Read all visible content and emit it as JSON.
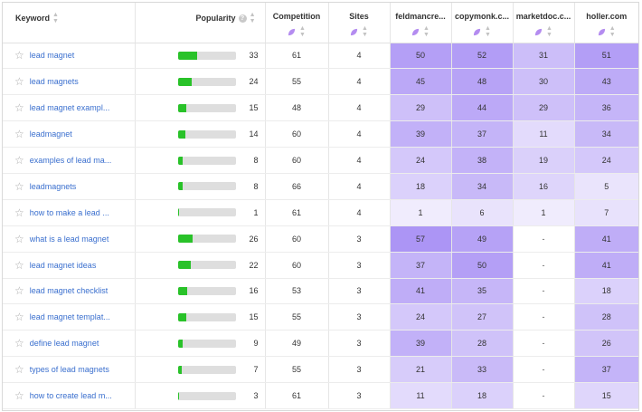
{
  "columns": {
    "keyword": "Keyword",
    "popularity": "Popularity",
    "competition": "Competition",
    "sites": "Sites",
    "site1": "feldmancre...",
    "site2": "copymonk.c...",
    "site3": "marketdoc.c...",
    "site4": "holler.com"
  },
  "popularity_max": 100,
  "heat_color": "#a58cf4",
  "rows": [
    {
      "keyword": "lead magnet",
      "popularity": 33,
      "competition": 61,
      "sites": 4,
      "s1": "50",
      "s2": "52",
      "s3": "31",
      "s4": "51"
    },
    {
      "keyword": "lead magnets",
      "popularity": 24,
      "competition": 55,
      "sites": 4,
      "s1": "45",
      "s2": "48",
      "s3": "30",
      "s4": "43"
    },
    {
      "keyword": "lead magnet exampl...",
      "popularity": 15,
      "competition": 48,
      "sites": 4,
      "s1": "29",
      "s2": "44",
      "s3": "29",
      "s4": "36"
    },
    {
      "keyword": "leadmagnet",
      "popularity": 14,
      "competition": 60,
      "sites": 4,
      "s1": "39",
      "s2": "37",
      "s3": "11",
      "s4": "34"
    },
    {
      "keyword": "examples of lead ma...",
      "popularity": 8,
      "competition": 60,
      "sites": 4,
      "s1": "24",
      "s2": "38",
      "s3": "19",
      "s4": "24"
    },
    {
      "keyword": "leadmagnets",
      "popularity": 8,
      "competition": 66,
      "sites": 4,
      "s1": "18",
      "s2": "34",
      "s3": "16",
      "s4": "5"
    },
    {
      "keyword": "how to make a lead ...",
      "popularity": 1,
      "competition": 61,
      "sites": 4,
      "s1": "1",
      "s2": "6",
      "s3": "1",
      "s4": "7"
    },
    {
      "keyword": "what is a lead magnet",
      "popularity": 26,
      "competition": 60,
      "sites": 3,
      "s1": "57",
      "s2": "49",
      "s3": "-",
      "s4": "41"
    },
    {
      "keyword": "lead magnet ideas",
      "popularity": 22,
      "competition": 60,
      "sites": 3,
      "s1": "37",
      "s2": "50",
      "s3": "-",
      "s4": "41"
    },
    {
      "keyword": "lead magnet checklist",
      "popularity": 16,
      "competition": 53,
      "sites": 3,
      "s1": "41",
      "s2": "35",
      "s3": "-",
      "s4": "18"
    },
    {
      "keyword": "lead magnet templat...",
      "popularity": 15,
      "competition": 55,
      "sites": 3,
      "s1": "24",
      "s2": "27",
      "s3": "-",
      "s4": "28"
    },
    {
      "keyword": "define lead magnet",
      "popularity": 9,
      "competition": 49,
      "sites": 3,
      "s1": "39",
      "s2": "28",
      "s3": "-",
      "s4": "26"
    },
    {
      "keyword": "types of lead magnets",
      "popularity": 7,
      "competition": 55,
      "sites": 3,
      "s1": "21",
      "s2": "33",
      "s3": "-",
      "s4": "37"
    },
    {
      "keyword": "how to create lead m...",
      "popularity": 3,
      "competition": 61,
      "sites": 3,
      "s1": "11",
      "s2": "18",
      "s3": "-",
      "s4": "15"
    }
  ]
}
